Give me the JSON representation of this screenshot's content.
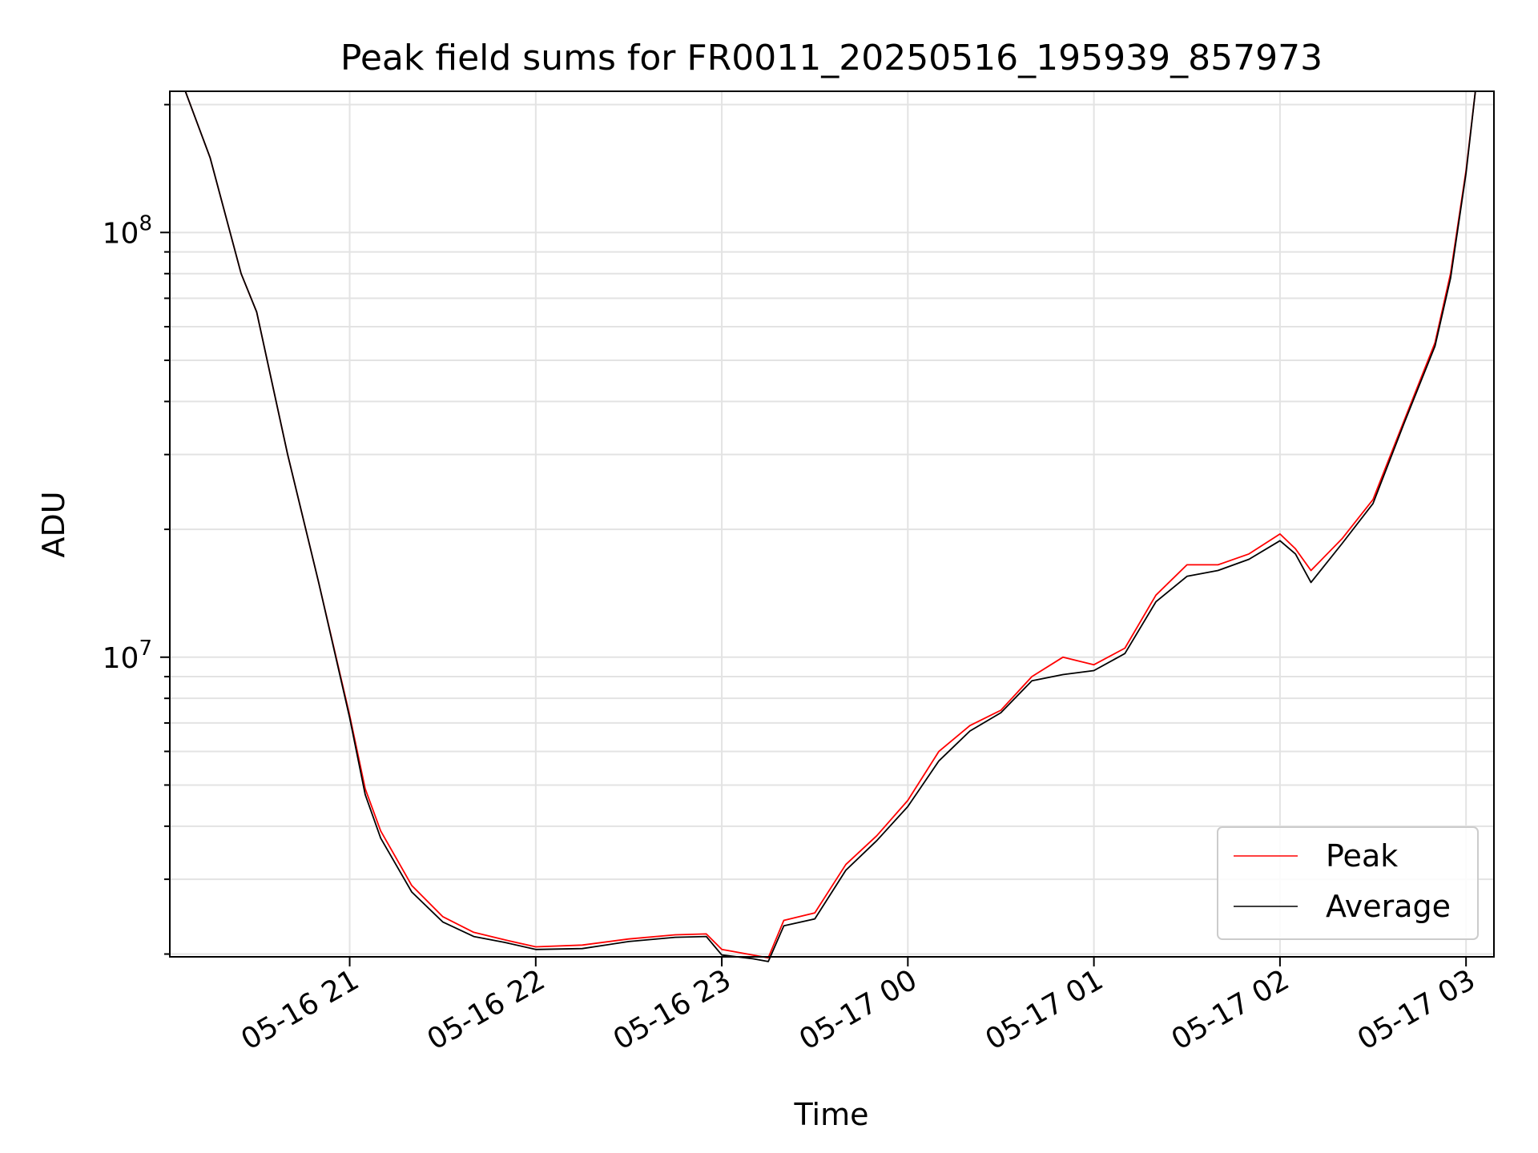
{
  "chart_data": {
    "type": "line",
    "title": "Peak field sums for FR0011_20250516_195939_857973",
    "xlabel": "Time",
    "ylabel": "ADU",
    "y_scale": "log",
    "ylim": [
      1970000,
      215000000
    ],
    "xlim": [
      "2025-05-16 20:02",
      "2025-05-17 03:09"
    ],
    "x_ticks": [
      "05-16 21",
      "05-16 22",
      "05-16 23",
      "05-17 00",
      "05-17 01",
      "05-17 02",
      "05-17 03"
    ],
    "x_tick_times": [
      "2025-05-16 21:00",
      "2025-05-16 22:00",
      "2025-05-16 23:00",
      "2025-05-17 00:00",
      "2025-05-17 01:00",
      "2025-05-17 02:00",
      "2025-05-17 03:00"
    ],
    "y_ticks": [
      "10^8",
      "10^7"
    ],
    "y_tick_values": [
      100000000,
      10000000
    ],
    "grid": true,
    "legend_position": "bottom-right",
    "series": [
      {
        "name": "Peak",
        "color": "#ff0000",
        "x": [
          "2025-05-16 20:07",
          "2025-05-16 20:15",
          "2025-05-16 20:25",
          "2025-05-16 20:30",
          "2025-05-16 20:40",
          "2025-05-16 20:50",
          "2025-05-16 21:00",
          "2025-05-16 21:05",
          "2025-05-16 21:10",
          "2025-05-16 21:20",
          "2025-05-16 21:30",
          "2025-05-16 21:40",
          "2025-05-16 21:50",
          "2025-05-16 22:00",
          "2025-05-16 22:15",
          "2025-05-16 22:30",
          "2025-05-16 22:45",
          "2025-05-16 22:55",
          "2025-05-16 23:00",
          "2025-05-16 23:10",
          "2025-05-16 23:15",
          "2025-05-16 23:20",
          "2025-05-16 23:30",
          "2025-05-16 23:40",
          "2025-05-16 23:50",
          "2025-05-17 00:00",
          "2025-05-17 00:10",
          "2025-05-17 00:20",
          "2025-05-17 00:30",
          "2025-05-17 00:40",
          "2025-05-17 00:50",
          "2025-05-17 01:00",
          "2025-05-17 01:10",
          "2025-05-17 01:20",
          "2025-05-17 01:30",
          "2025-05-17 01:40",
          "2025-05-17 01:50",
          "2025-05-17 02:00",
          "2025-05-17 02:05",
          "2025-05-17 02:10",
          "2025-05-17 02:20",
          "2025-05-17 02:30",
          "2025-05-17 02:40",
          "2025-05-17 02:50",
          "2025-05-17 02:55",
          "2025-05-17 03:00",
          "2025-05-17 03:03"
        ],
        "y": [
          215000000,
          150000000,
          80000000,
          65000000,
          30000000,
          15000000,
          7300000,
          4900000,
          3900000,
          2900000,
          2450000,
          2250000,
          2160000,
          2080000,
          2100000,
          2170000,
          2220000,
          2230000,
          2050000,
          1990000,
          1960000,
          2400000,
          2500000,
          3250000,
          3800000,
          4600000,
          6000000,
          6900000,
          7500000,
          9000000,
          10000000,
          9600000,
          10500000,
          14000000,
          16500000,
          16500000,
          17500000,
          19500000,
          18000000,
          16000000,
          19000000,
          23500000,
          36000000,
          55000000,
          80000000,
          140000000,
          215000000
        ]
      },
      {
        "name": "Average",
        "color": "#000000",
        "x": [
          "2025-05-16 20:07",
          "2025-05-16 20:15",
          "2025-05-16 20:25",
          "2025-05-16 20:30",
          "2025-05-16 20:40",
          "2025-05-16 20:50",
          "2025-05-16 21:00",
          "2025-05-16 21:05",
          "2025-05-16 21:10",
          "2025-05-16 21:20",
          "2025-05-16 21:30",
          "2025-05-16 21:40",
          "2025-05-16 21:50",
          "2025-05-16 22:00",
          "2025-05-16 22:15",
          "2025-05-16 22:30",
          "2025-05-16 22:45",
          "2025-05-16 22:55",
          "2025-05-16 23:00",
          "2025-05-16 23:10",
          "2025-05-16 23:15",
          "2025-05-16 23:20",
          "2025-05-16 23:30",
          "2025-05-16 23:40",
          "2025-05-16 23:50",
          "2025-05-17 00:00",
          "2025-05-17 00:10",
          "2025-05-17 00:20",
          "2025-05-17 00:30",
          "2025-05-17 00:40",
          "2025-05-17 00:50",
          "2025-05-17 01:00",
          "2025-05-17 01:10",
          "2025-05-17 01:20",
          "2025-05-17 01:30",
          "2025-05-17 01:40",
          "2025-05-17 01:50",
          "2025-05-17 02:00",
          "2025-05-17 02:05",
          "2025-05-17 02:10",
          "2025-05-17 02:20",
          "2025-05-17 02:30",
          "2025-05-17 02:40",
          "2025-05-17 02:50",
          "2025-05-17 02:55",
          "2025-05-17 03:00",
          "2025-05-17 03:03"
        ],
        "y": [
          215000000,
          150000000,
          80000000,
          65000000,
          30000000,
          15000000,
          7200000,
          4750000,
          3750000,
          2800000,
          2380000,
          2200000,
          2130000,
          2050000,
          2060000,
          2140000,
          2190000,
          2200000,
          1990000,
          1950000,
          1920000,
          2330000,
          2420000,
          3150000,
          3700000,
          4450000,
          5700000,
          6700000,
          7400000,
          8800000,
          9100000,
          9300000,
          10200000,
          13500000,
          15500000,
          16000000,
          17000000,
          18800000,
          17500000,
          15000000,
          18500000,
          23000000,
          35500000,
          54000000,
          78000000,
          138000000,
          215000000
        ]
      }
    ]
  }
}
